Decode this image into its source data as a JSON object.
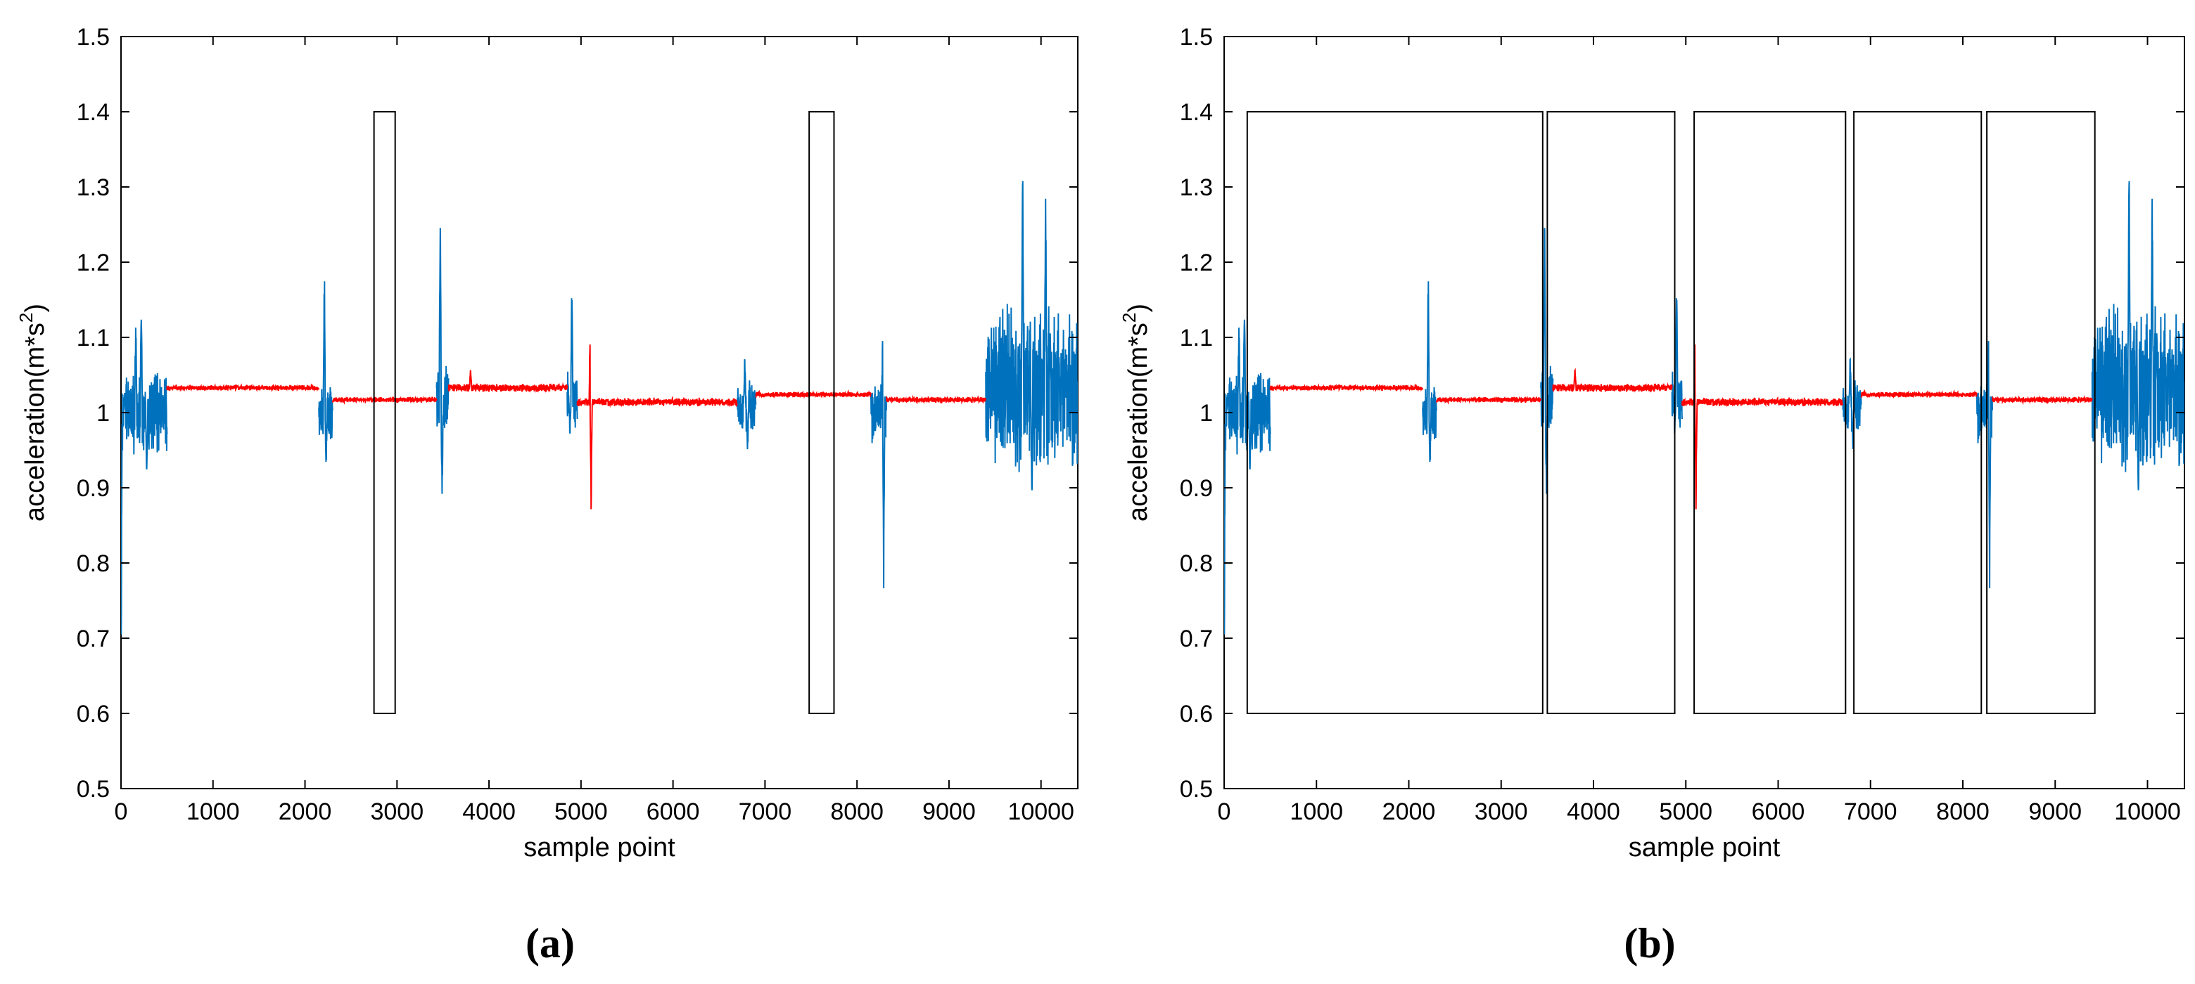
{
  "chart_data": [
    {
      "type": "line",
      "panel_label": "(a)",
      "xlabel": "sample point",
      "ylabel": "acceleration(m*s2)",
      "ylabel_parts": {
        "base": "acceleration(m*s",
        "sup": "2",
        "close": ")"
      },
      "xlim": [
        0,
        10400
      ],
      "ylim": [
        0.5,
        1.5
      ],
      "xticks": [
        0,
        1000,
        2000,
        3000,
        4000,
        5000,
        6000,
        7000,
        8000,
        9000,
        10000
      ],
      "yticks": [
        0.5,
        0.6,
        0.7,
        0.8,
        0.9,
        1,
        1.1,
        1.2,
        1.3,
        1.4,
        1.5
      ],
      "grid": false,
      "series": [
        {
          "color": "#0072BD",
          "segments": [
            {
              "x0": 0,
              "x1": 500,
              "base": 1.0,
              "noise": 0.06,
              "peaks": [
                [
                  0,
                  -0.43
                ],
                [
                  40,
                  0.03
                ],
                [
                  160,
                  0.16
                ],
                [
                  220,
                  0.18
                ],
                [
                  280,
                  -0.1
                ]
              ]
            },
            {
              "x0": 2150,
              "x1": 2300,
              "base": 1.0,
              "noise": 0.04,
              "peaks": [
                [
                  2210,
                  0.22
                ],
                [
                  2230,
                  -0.08
                ]
              ]
            },
            {
              "x0": 3430,
              "x1": 3560,
              "base": 1.02,
              "noise": 0.05,
              "peaks": [
                [
                  3470,
                  0.29
                ],
                [
                  3490,
                  -0.16
                ]
              ]
            },
            {
              "x0": 4850,
              "x1": 4960,
              "base": 1.02,
              "noise": 0.05,
              "peaks": [
                [
                  4900,
                  0.17
                ],
                [
                  4880,
                  -0.06
                ]
              ]
            },
            {
              "x0": 6700,
              "x1": 6900,
              "base": 1.01,
              "noise": 0.04,
              "peaks": [
                [
                  6780,
                  0.08
                ],
                [
                  6810,
                  -0.08
                ]
              ]
            },
            {
              "x0": 8150,
              "x1": 8320,
              "base": 1.0,
              "noise": 0.05,
              "peaks": [
                [
                  8280,
                  0.15
                ],
                [
                  8290,
                  -0.25
                ]
              ]
            },
            {
              "x0": 9400,
              "x1": 10400,
              "base": 1.03,
              "noise": 0.12,
              "peaks": [
                [
                  9800,
                  0.39
                ],
                [
                  10050,
                  0.33
                ],
                [
                  9900,
                  -0.19
                ],
                [
                  10100,
                  0.09
                ]
              ]
            }
          ]
        },
        {
          "color": "#FF0000",
          "segments": [
            {
              "x0": 500,
              "x1": 2150,
              "base": 1.033,
              "noise": 0.004,
              "peaks": []
            },
            {
              "x0": 2300,
              "x1": 3430,
              "base": 1.017,
              "noise": 0.004,
              "peaks": []
            },
            {
              "x0": 3560,
              "x1": 4850,
              "base": 1.033,
              "noise": 0.006,
              "peaks": [
                [
                  3800,
                  0.03
                ]
              ]
            },
            {
              "x0": 4960,
              "x1": 6700,
              "base": 1.014,
              "noise": 0.006,
              "peaks": [
                [
                  5100,
                  0.12
                ],
                [
                  5110,
                  -0.16
                ]
              ]
            },
            {
              "x0": 6900,
              "x1": 8150,
              "base": 1.024,
              "noise": 0.004,
              "peaks": []
            },
            {
              "x0": 8320,
              "x1": 9400,
              "base": 1.017,
              "noise": 0.004,
              "peaks": []
            }
          ]
        }
      ],
      "boxes": [
        {
          "x0": 2750,
          "x1": 2980,
          "y0": 0.6,
          "y1": 1.4
        },
        {
          "x0": 7480,
          "x1": 7750,
          "y0": 0.6,
          "y1": 1.4
        }
      ]
    },
    {
      "type": "line",
      "panel_label": "(b)",
      "xlabel": "sample point",
      "ylabel": "acceleration(m*s2)",
      "ylabel_parts": {
        "base": "acceleration(m*s",
        "sup": "2",
        "close": ")"
      },
      "xlim": [
        0,
        10400
      ],
      "ylim": [
        0.5,
        1.5
      ],
      "xticks": [
        0,
        1000,
        2000,
        3000,
        4000,
        5000,
        6000,
        7000,
        8000,
        9000,
        10000
      ],
      "yticks": [
        0.5,
        0.6,
        0.7,
        0.8,
        0.9,
        1,
        1.1,
        1.2,
        1.3,
        1.4,
        1.5
      ],
      "grid": false,
      "series": [
        {
          "color": "#0072BD",
          "segments": [
            {
              "x0": 0,
              "x1": 500,
              "base": 1.0,
              "noise": 0.06,
              "peaks": [
                [
                  0,
                  -0.43
                ],
                [
                  40,
                  0.03
                ],
                [
                  160,
                  0.16
                ],
                [
                  220,
                  0.18
                ],
                [
                  280,
                  -0.1
                ]
              ]
            },
            {
              "x0": 2150,
              "x1": 2300,
              "base": 1.0,
              "noise": 0.04,
              "peaks": [
                [
                  2210,
                  0.22
                ],
                [
                  2230,
                  -0.08
                ]
              ]
            },
            {
              "x0": 3430,
              "x1": 3560,
              "base": 1.02,
              "noise": 0.05,
              "peaks": [
                [
                  3470,
                  0.29
                ],
                [
                  3490,
                  -0.16
                ]
              ]
            },
            {
              "x0": 4850,
              "x1": 4960,
              "base": 1.02,
              "noise": 0.05,
              "peaks": [
                [
                  4900,
                  0.17
                ],
                [
                  4880,
                  -0.06
                ]
              ]
            },
            {
              "x0": 6700,
              "x1": 6900,
              "base": 1.01,
              "noise": 0.04,
              "peaks": [
                [
                  6780,
                  0.08
                ],
                [
                  6810,
                  -0.08
                ]
              ]
            },
            {
              "x0": 8150,
              "x1": 8320,
              "base": 1.0,
              "noise": 0.05,
              "peaks": [
                [
                  8280,
                  0.15
                ],
                [
                  8290,
                  -0.25
                ]
              ]
            },
            {
              "x0": 9400,
              "x1": 10400,
              "base": 1.03,
              "noise": 0.12,
              "peaks": [
                [
                  9800,
                  0.39
                ],
                [
                  10050,
                  0.33
                ],
                [
                  9900,
                  -0.19
                ],
                [
                  10100,
                  0.09
                ]
              ]
            }
          ]
        },
        {
          "color": "#FF0000",
          "segments": [
            {
              "x0": 500,
              "x1": 2150,
              "base": 1.033,
              "noise": 0.004,
              "peaks": []
            },
            {
              "x0": 2300,
              "x1": 3430,
              "base": 1.017,
              "noise": 0.004,
              "peaks": []
            },
            {
              "x0": 3560,
              "x1": 4850,
              "base": 1.033,
              "noise": 0.006,
              "peaks": [
                [
                  3800,
                  0.03
                ]
              ]
            },
            {
              "x0": 4960,
              "x1": 6700,
              "base": 1.014,
              "noise": 0.006,
              "peaks": [
                [
                  5100,
                  0.12
                ],
                [
                  5110,
                  -0.16
                ]
              ]
            },
            {
              "x0": 6900,
              "x1": 8150,
              "base": 1.024,
              "noise": 0.004,
              "peaks": []
            },
            {
              "x0": 8320,
              "x1": 9400,
              "base": 1.017,
              "noise": 0.004,
              "peaks": []
            }
          ]
        }
      ],
      "boxes": [
        {
          "x0": 250,
          "x1": 3450,
          "y0": 0.6,
          "y1": 1.4
        },
        {
          "x0": 3500,
          "x1": 4880,
          "y0": 0.6,
          "y1": 1.4
        },
        {
          "x0": 5090,
          "x1": 6730,
          "y0": 0.6,
          "y1": 1.4
        },
        {
          "x0": 6820,
          "x1": 8200,
          "y0": 0.6,
          "y1": 1.4
        },
        {
          "x0": 8260,
          "x1": 9430,
          "y0": 0.6,
          "y1": 1.4
        }
      ]
    }
  ]
}
